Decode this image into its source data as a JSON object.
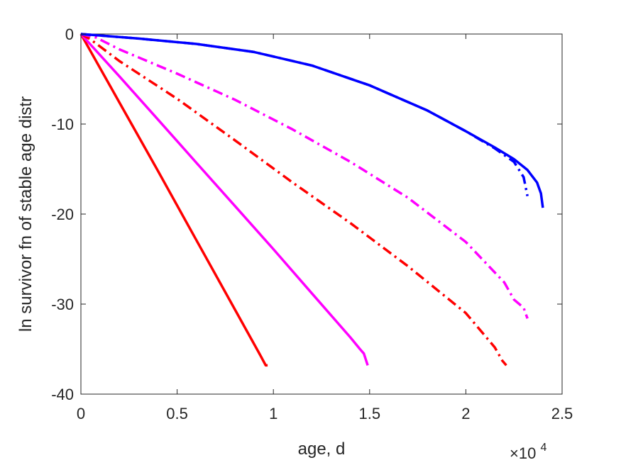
{
  "chart_data": {
    "type": "line",
    "xlabel": "age, d",
    "ylabel": "ln survivor fn of stable age distr",
    "x_exponent_base": "×10",
    "x_exponent_power": "4",
    "xlim": [
      0,
      25000
    ],
    "ylim": [
      -40,
      0
    ],
    "xticks": [
      0,
      5000,
      10000,
      15000,
      20000,
      25000
    ],
    "xtick_labels": [
      "0",
      "0.5",
      "1",
      "1.5",
      "2",
      "2.5"
    ],
    "yticks": [
      0,
      -10,
      -20,
      -30,
      -40
    ],
    "ytick_labels": [
      "0",
      "-10",
      "-20",
      "-30",
      "-40"
    ],
    "grid": false,
    "series": [
      {
        "color": "#ff0000",
        "style": "solid",
        "x": [
          0,
          2000,
          4000,
          6000,
          8000,
          9300,
          9600,
          9700
        ],
        "y": [
          0,
          -7.6,
          -15.2,
          -22.9,
          -30.6,
          -35.6,
          -36.8,
          -36.8
        ]
      },
      {
        "color": "#ff00ff",
        "style": "solid",
        "x": [
          0,
          2000,
          4000,
          6000,
          8000,
          10000,
          12000,
          14000,
          14500,
          14700,
          14900
        ],
        "y": [
          0,
          -4.7,
          -9.5,
          -14.3,
          -19.1,
          -23.9,
          -28.8,
          -33.7,
          -35.0,
          -35.5,
          -36.8
        ]
      },
      {
        "color": "#ff0000",
        "style": "dashdot",
        "x": [
          0,
          500,
          2000,
          5000,
          8000,
          11000,
          14000,
          17000,
          20000,
          21500,
          21900,
          22100
        ],
        "y": [
          0,
          -0.6,
          -3.0,
          -7.2,
          -11.8,
          -16.5,
          -21.0,
          -25.8,
          -31.0,
          -34.8,
          -36.3,
          -36.8
        ]
      },
      {
        "color": "#ff00ff",
        "style": "dashdot",
        "x": [
          0,
          800,
          2000,
          5000,
          8000,
          11000,
          14000,
          17000,
          20000,
          22000,
          22500,
          23000,
          23200
        ],
        "y": [
          0,
          -0.4,
          -1.7,
          -4.4,
          -7.3,
          -10.6,
          -14.2,
          -18.2,
          -23.1,
          -27.6,
          -29.5,
          -30.4,
          -31.6
        ]
      },
      {
        "color": "#0000ff",
        "style": "dashdot",
        "x": [
          0,
          3000,
          6000,
          9000,
          12000,
          15000,
          18000,
          20000,
          21500,
          22500,
          23000,
          23200
        ],
        "y": [
          0,
          -0.5,
          -1.1,
          -2.0,
          -3.5,
          -5.7,
          -8.5,
          -10.8,
          -12.7,
          -14.2,
          -15.9,
          -18.0
        ]
      },
      {
        "color": "#0000ff",
        "style": "solid",
        "x": [
          0,
          3000,
          6000,
          9000,
          12000,
          15000,
          18000,
          20000,
          21500,
          22500,
          23200,
          23700,
          23900,
          24000
        ],
        "y": [
          0,
          -0.5,
          -1.1,
          -2.0,
          -3.5,
          -5.7,
          -8.5,
          -10.8,
          -12.6,
          -13.9,
          -15.1,
          -16.5,
          -17.7,
          -19.3
        ]
      }
    ]
  }
}
